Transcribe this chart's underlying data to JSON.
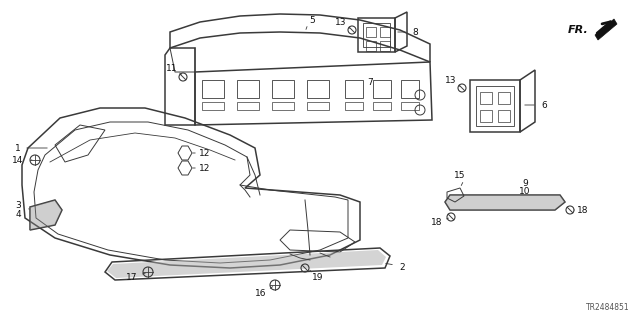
{
  "bg_color": "#ffffff",
  "diagram_code": "TR2484851",
  "line_color": "#3a3a3a",
  "label_color": "#111111",
  "label_fs": 6.5
}
